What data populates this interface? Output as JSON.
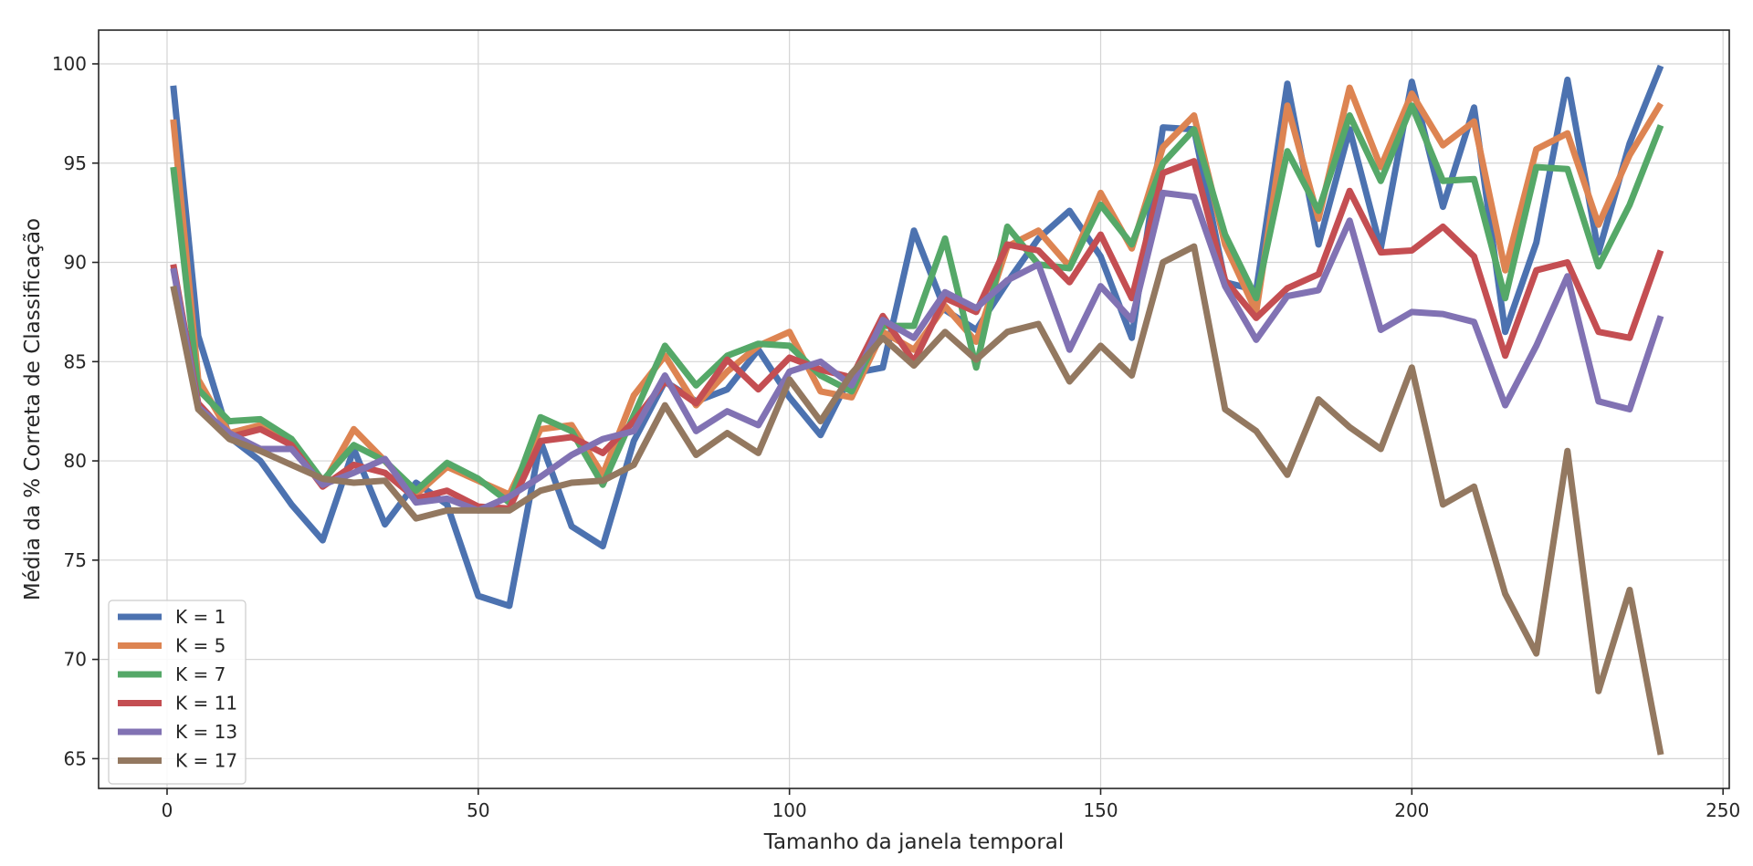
{
  "chart_data": {
    "type": "line",
    "title": "",
    "xlabel": "Tamanho da janela temporal",
    "ylabel": "Média da % Correta de Classificação",
    "xlim": [
      -11,
      251
    ],
    "ylim": [
      63.5,
      101.7
    ],
    "xticks": [
      0,
      50,
      100,
      150,
      200,
      250
    ],
    "yticks": [
      65,
      70,
      75,
      80,
      85,
      90,
      95,
      100
    ],
    "grid": true,
    "legend_position": "lower-left",
    "x": [
      1,
      5,
      10,
      15,
      20,
      25,
      30,
      35,
      40,
      45,
      50,
      55,
      60,
      65,
      70,
      75,
      80,
      85,
      90,
      95,
      100,
      105,
      110,
      115,
      120,
      125,
      130,
      135,
      140,
      145,
      150,
      155,
      160,
      165,
      170,
      175,
      180,
      185,
      190,
      195,
      200,
      205,
      210,
      215,
      220,
      225,
      230,
      235,
      240
    ],
    "series": [
      {
        "name": "K = 1",
        "color": "#4c72b0",
        "values": [
          98.9,
          86.3,
          81.2,
          80.0,
          77.8,
          76.0,
          80.6,
          76.8,
          78.9,
          77.8,
          73.2,
          72.7,
          81.0,
          76.7,
          75.7,
          81.0,
          84.0,
          83.0,
          83.6,
          85.6,
          83.2,
          81.3,
          84.4,
          84.7,
          91.6,
          87.6,
          86.6,
          89.0,
          91.2,
          92.6,
          90.3,
          86.2,
          96.8,
          96.7,
          89.0,
          88.6,
          99.0,
          90.9,
          96.7,
          90.7,
          99.1,
          92.8,
          97.8,
          86.5,
          91.0,
          99.2,
          90.5,
          96.0,
          99.9
        ]
      },
      {
        "name": "K = 5",
        "color": "#dd8452",
        "values": [
          97.2,
          84.1,
          81.4,
          81.8,
          81.0,
          78.8,
          81.6,
          80.0,
          78.3,
          79.7,
          79.0,
          78.3,
          81.6,
          81.8,
          79.3,
          83.3,
          85.3,
          82.8,
          84.5,
          85.8,
          86.5,
          83.5,
          83.2,
          86.5,
          85.6,
          87.8,
          86.0,
          90.8,
          91.6,
          89.8,
          93.5,
          90.7,
          95.8,
          97.4,
          90.9,
          87.5,
          97.9,
          92.2,
          98.8,
          94.8,
          98.5,
          95.9,
          97.1,
          89.6,
          95.7,
          96.5,
          91.9,
          95.4,
          98.0
        ]
      },
      {
        "name": "K = 7",
        "color": "#55a868",
        "values": [
          94.8,
          83.6,
          82.0,
          82.1,
          81.1,
          79.0,
          80.8,
          80.0,
          78.5,
          79.9,
          79.1,
          77.9,
          82.2,
          81.5,
          78.8,
          82.3,
          85.8,
          83.8,
          85.3,
          85.9,
          85.8,
          84.3,
          83.5,
          86.8,
          86.8,
          91.2,
          84.7,
          91.8,
          89.9,
          89.7,
          92.9,
          90.9,
          95.0,
          96.7,
          91.4,
          88.2,
          95.6,
          92.6,
          97.4,
          94.1,
          97.9,
          94.1,
          94.2,
          88.2,
          94.8,
          94.7,
          89.8,
          92.9,
          96.9
        ]
      },
      {
        "name": "K = 11",
        "color": "#c44e52",
        "values": [
          89.9,
          82.9,
          81.2,
          81.6,
          80.8,
          78.7,
          79.8,
          79.4,
          78.1,
          78.5,
          77.7,
          77.6,
          81.0,
          81.2,
          80.4,
          82.0,
          84.0,
          82.9,
          85.1,
          83.6,
          85.2,
          84.6,
          84.2,
          87.3,
          85.0,
          88.2,
          87.5,
          90.9,
          90.6,
          89.0,
          91.4,
          88.2,
          94.5,
          95.1,
          89.1,
          87.2,
          88.7,
          89.4,
          93.6,
          90.5,
          90.6,
          91.8,
          90.3,
          85.3,
          89.6,
          90.0,
          86.5,
          86.2,
          90.6
        ]
      },
      {
        "name": "K = 13",
        "color": "#8172b3",
        "values": [
          89.7,
          82.7,
          81.4,
          80.6,
          80.6,
          78.8,
          79.4,
          80.1,
          77.9,
          78.1,
          77.5,
          78.2,
          79.2,
          80.3,
          81.1,
          81.5,
          84.3,
          81.5,
          82.5,
          81.8,
          84.5,
          85.0,
          83.8,
          87.1,
          86.2,
          88.5,
          87.7,
          89.1,
          89.9,
          85.6,
          88.8,
          87.1,
          93.5,
          93.3,
          88.8,
          86.1,
          88.3,
          88.6,
          92.1,
          86.6,
          87.5,
          87.4,
          87.0,
          82.8,
          85.8,
          89.3,
          83.0,
          82.6,
          87.3
        ]
      },
      {
        "name": "K = 17",
        "color": "#937860",
        "values": [
          88.8,
          82.6,
          81.1,
          80.5,
          79.8,
          79.1,
          78.9,
          79.0,
          77.1,
          77.5,
          77.5,
          77.5,
          78.5,
          78.9,
          79.0,
          79.8,
          82.8,
          80.3,
          81.4,
          80.4,
          84.1,
          82.0,
          84.4,
          86.2,
          84.8,
          86.5,
          85.1,
          86.5,
          86.9,
          84.0,
          85.8,
          84.3,
          90.0,
          90.8,
          82.6,
          81.5,
          79.3,
          83.1,
          81.7,
          80.6,
          84.7,
          77.8,
          78.7,
          73.3,
          70.3,
          80.5,
          68.4,
          73.5,
          65.2
        ]
      }
    ]
  }
}
